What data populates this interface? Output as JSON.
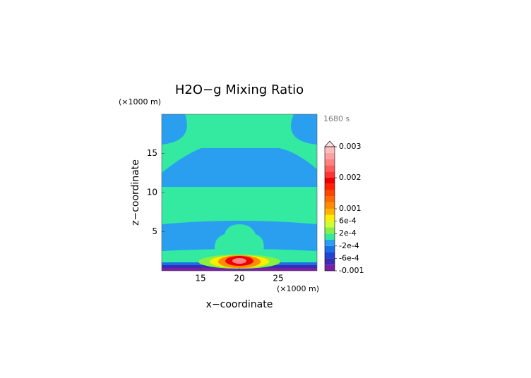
{
  "chart_data": {
    "type": "contour",
    "title": "H2O−g Mixing Ratio",
    "x_label": "x−coordinate",
    "y_label": "z−coordinate",
    "x_unit": "(×1000 m)",
    "y_unit": "(×1000 m)",
    "time_label": "1680 s",
    "xlim": [
      10,
      30
    ],
    "xticks": [
      15,
      20,
      25
    ],
    "ylim": [
      0,
      20
    ],
    "yticks": [
      5,
      10,
      15
    ],
    "colorbar": {
      "lim": [
        -0.001,
        0.003
      ],
      "ticks": [
        -0.001,
        {
          "value": -0.0006,
          "label": "-6e-4"
        },
        {
          "value": -0.0002,
          "label": "-2e-4"
        },
        {
          "value": 0.0002,
          "label": "2e-4"
        },
        {
          "value": 0.0006,
          "label": "6e-4"
        },
        0.001,
        0.002,
        0.003
      ],
      "levels": [
        -0.001,
        -0.0008,
        -0.0006,
        -0.0004,
        -0.0002,
        0,
        0.0002,
        0.0004,
        0.0006,
        0.0008,
        0.001,
        0.0012,
        0.0014,
        0.0016,
        0.0018,
        0.002,
        0.0022,
        0.0024,
        0.0026,
        0.0028,
        0.003
      ],
      "colors": [
        "#7a1fa8",
        "#3a2db4",
        "#2044d4",
        "#1a70e8",
        "#2a9ff0",
        "#33eaa0",
        "#88f040",
        "#ccff33",
        "#ffee00",
        "#ffb400",
        "#ff8c00",
        "#ff6a00",
        "#ff4500",
        "#ff2200",
        "#ee0000",
        "#ff3535",
        "#ff5c5c",
        "#ff8282",
        "#ffa0a0",
        "#ffbcbc"
      ],
      "over_color": "#ffe0e0"
    }
  }
}
